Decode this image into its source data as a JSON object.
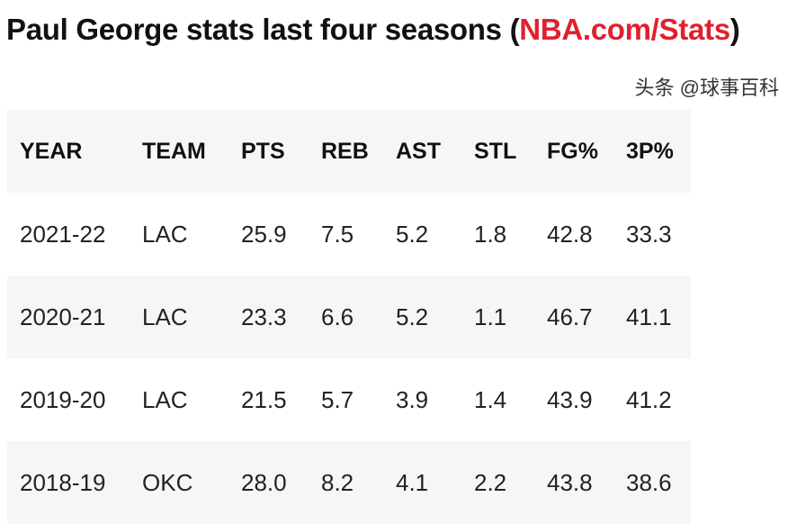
{
  "title": {
    "text": "Paul George stats last four seasons ",
    "open": "(",
    "source": "NBA.com/Stats",
    "close": ")"
  },
  "colors": {
    "source_link": "#e0202e",
    "stripe": "#f6f6f6"
  },
  "table": {
    "headers": [
      "YEAR",
      "TEAM",
      "PTS",
      "REB",
      "AST",
      "STL",
      "FG%",
      "3P%"
    ],
    "rows": [
      [
        "2021-22",
        "LAC",
        "25.9",
        "7.5",
        "5.2",
        "1.8",
        "42.8",
        "33.3"
      ],
      [
        "2020-21",
        "LAC",
        "23.3",
        "6.6",
        "5.2",
        "1.1",
        "46.7",
        "41.1"
      ],
      [
        "2019-20",
        "LAC",
        "21.5",
        "5.7",
        "3.9",
        "1.4",
        "43.9",
        "41.2"
      ],
      [
        "2018-19",
        "OKC",
        "28.0",
        "8.2",
        "4.1",
        "2.2",
        "43.8",
        "38.6"
      ]
    ]
  },
  "watermark": "头条 @球事百科"
}
